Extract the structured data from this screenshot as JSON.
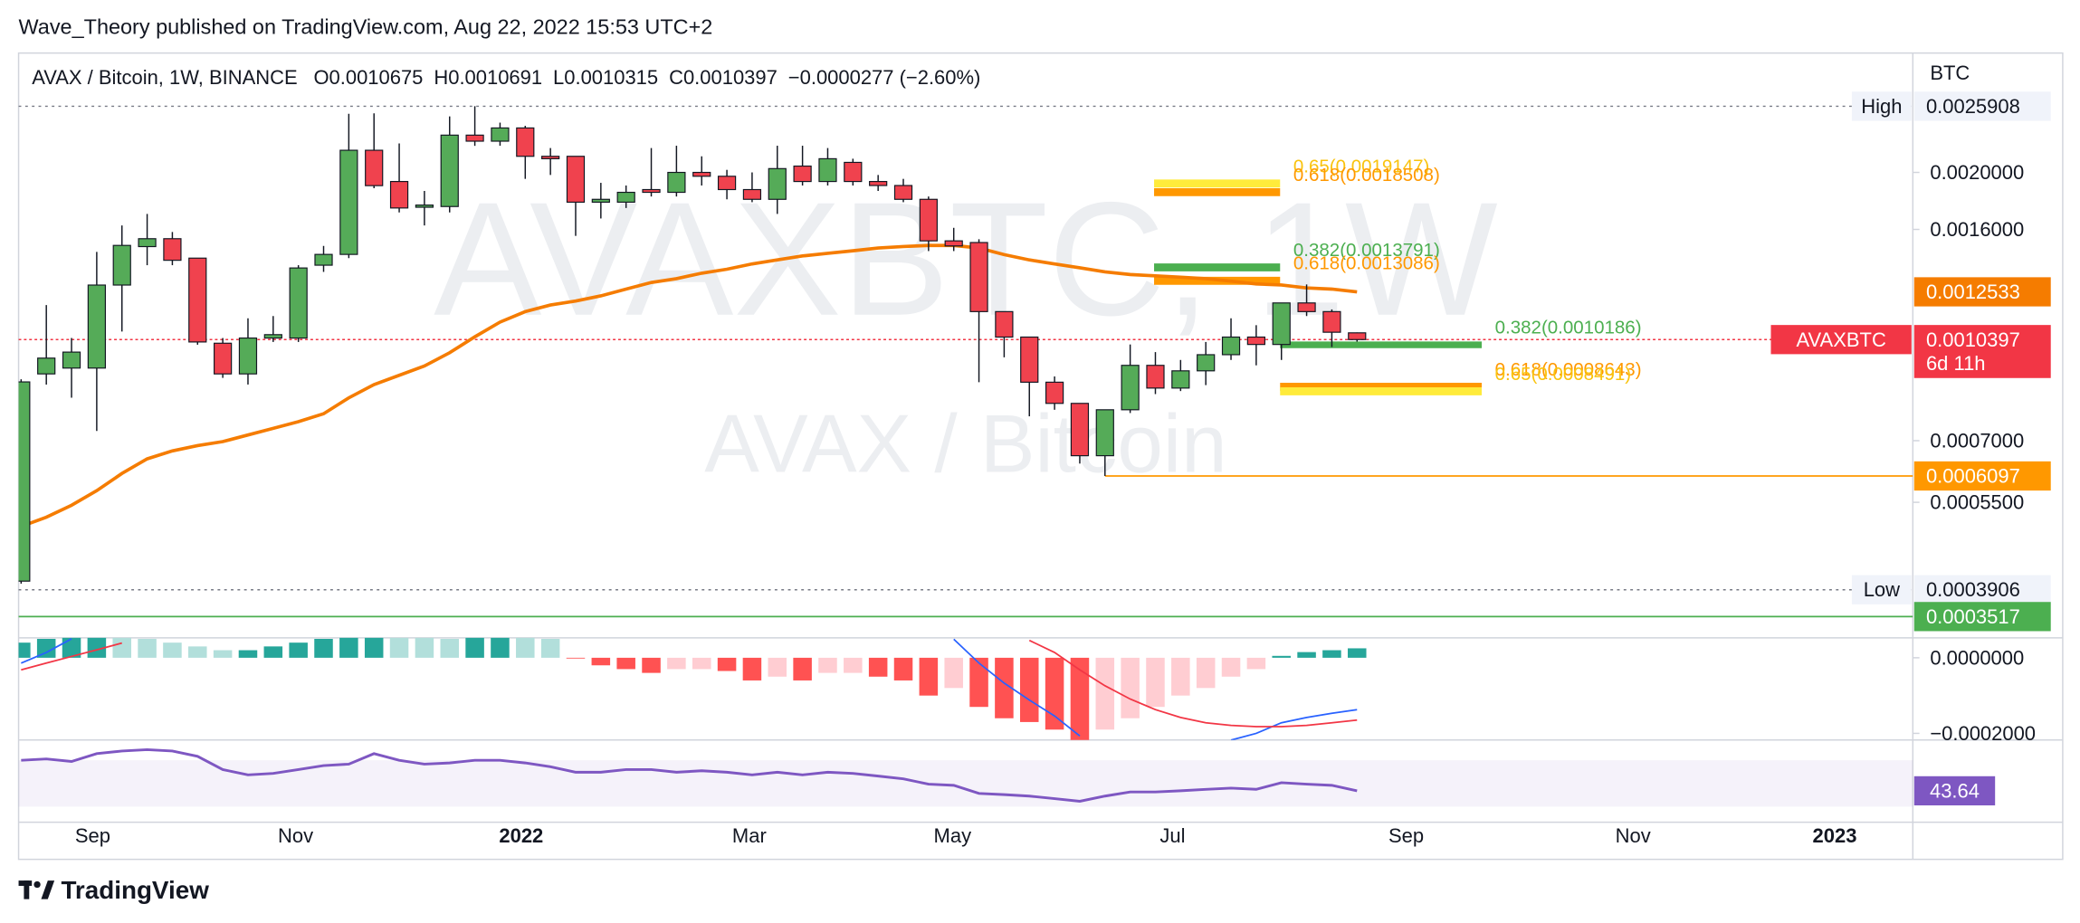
{
  "header": {
    "published": "Wave_Theory published on TradingView.com, Aug 22, 2022 15:53 UTC+2",
    "symbol": "AVAX / Bitcoin, 1W, BINANCE",
    "open": "O0.0010675",
    "high": "H0.0010691",
    "low": "L0.0010315",
    "close": "C0.0010397",
    "change": "−0.0000277 (−2.60%)"
  },
  "footer": {
    "brand": "TradingView"
  },
  "chart_data": {
    "type": "candlestick",
    "watermark": "AVAXBTC, 1W",
    "watermark_sub": "AVAX / Bitcoin",
    "unit": "BTC",
    "log_scale": true,
    "up_color": "#55ab58",
    "down_color": "#f0424e",
    "wick_color": "#131722",
    "open": [
      0.000404,
      0.000909,
      0.00093,
      0.00093,
      0.001287,
      0.001496,
      0.001543,
      0.00143,
      0.001025,
      0.000909,
      0.001046,
      0.001046,
      0.001391,
      0.001451,
      0.002181,
      0.00193,
      0.001745,
      0.00175,
      0.002314,
      0.00226,
      0.00238,
      0.00213,
      0.00213,
      0.00178,
      0.00178,
      0.00187,
      0.00185,
      0.002,
      0.00197,
      0.00187,
      0.0018,
      0.00205,
      0.00193,
      0.00208,
      0.00193,
      0.0019,
      0.0018,
      0.00153,
      0.00152,
      0.00116,
      0.00105,
      0.00088,
      0.00081,
      0.00066,
      0.00079,
      0.00094,
      0.00086,
      0.00092,
      0.00098,
      0.00105,
      0.00102,
      0.0012,
      0.00116,
      0.0010675
    ],
    "high": [
      0.00089,
      0.00119,
      0.001046,
      0.001465,
      0.001625,
      0.0017,
      0.001584,
      0.00143,
      0.001046,
      0.00113,
      0.00114,
      0.001391,
      0.0015,
      0.002516,
      0.00252,
      0.00224,
      0.00186,
      0.00249,
      0.0025908,
      0.00243,
      0.0024,
      0.0022,
      0.00213,
      0.00192,
      0.0019,
      0.0022,
      0.00222,
      0.00213,
      0.00202,
      0.002,
      0.00222,
      0.00222,
      0.0022,
      0.00211,
      0.00198,
      0.00195,
      0.00182,
      0.00161,
      0.00154,
      0.00116,
      0.00105,
      0.0009,
      0.00081,
      0.00079,
      0.00102,
      0.00099,
      0.00096,
      0.00103,
      0.00113,
      0.0011,
      0.0012,
      0.00129,
      0.00117,
      0.0010691
    ],
    "low": [
      0.0004,
      0.000872,
      0.000828,
      0.000727,
      0.001073,
      0.001391,
      0.001391,
      0.001019,
      0.000895,
      0.000872,
      0.00103,
      0.00103,
      0.001355,
      0.00143,
      0.00188,
      0.00171,
      0.001625,
      0.00171,
      0.002219,
      0.00222,
      0.00195,
      0.00198,
      0.00156,
      0.00167,
      0.00174,
      0.00182,
      0.00182,
      0.0019,
      0.0018,
      0.00178,
      0.0017,
      0.0019,
      0.0019,
      0.0019,
      0.00186,
      0.00178,
      0.00147,
      0.00147,
      0.00088,
      0.00097,
      0.00077,
      0.00079,
      0.00064,
      0.0006097,
      0.00078,
      0.00084,
      0.00085,
      0.00087,
      0.00096,
      0.00094,
      0.00096,
      0.00114,
      0.00101,
      0.0010315
    ],
    "close": [
      0.000881,
      0.000967,
      0.00099,
      0.001287,
      0.001503,
      0.001543,
      0.001418,
      0.00103,
      0.000909,
      0.001046,
      0.00106,
      0.001376,
      0.001451,
      0.002181,
      0.001899,
      0.00174,
      0.00176,
      0.002314,
      0.00226,
      0.00238,
      0.00213,
      0.00211,
      0.00178,
      0.0018,
      0.00185,
      0.00185,
      0.002,
      0.00197,
      0.00187,
      0.0018,
      0.00203,
      0.00193,
      0.00211,
      0.00193,
      0.0019,
      0.0018,
      0.00153,
      0.0015,
      0.00116,
      0.00105,
      0.00088,
      0.00081,
      0.00066,
      0.00079,
      0.00094,
      0.00086,
      0.00092,
      0.00098,
      0.00105,
      0.00102,
      0.0012,
      0.00116,
      0.00107,
      0.0010397
    ],
    "xlim": [
      -0.1,
      75.05
    ],
    "xticks": [
      {
        "value": 2.84,
        "label": "Sep"
      },
      {
        "value": 10.89,
        "label": "Nov"
      },
      {
        "value": 19.84,
        "label": "2022"
      },
      {
        "value": 28.89,
        "label": "Mar"
      },
      {
        "value": 36.95,
        "label": "May"
      },
      {
        "value": 45.68,
        "label": "Jul"
      },
      {
        "value": 54.95,
        "label": "Sep"
      },
      {
        "value": 63.95,
        "label": "Nov"
      },
      {
        "value": 71.95,
        "label": "2023"
      }
    ],
    "ylim": [
      0.00032524,
      0.0031906
    ],
    "yticks": [
      {
        "value": 0.002,
        "label": "0.0020000"
      },
      {
        "value": 0.0016,
        "label": "0.0016000"
      },
      {
        "value": 0.0007,
        "label": "0.0007000"
      },
      {
        "value": 0.00055,
        "label": "0.0005500"
      }
    ],
    "moving_average": {
      "color": "#f57c00",
      "values": [
        0.0005004,
        0.0005188,
        0.0005438,
        0.0005756,
        0.0006158,
        0.000652,
        0.0006726,
        0.0006868,
        0.0006974,
        0.0007158,
        0.0007346,
        0.000754,
        0.0007778,
        0.0008278,
        0.0008718,
        0.000904,
        0.0009376,
        0.0009874,
        0.001051,
        0.001113,
        0.00116,
        0.00119,
        0.001209,
        0.001234,
        0.001267,
        0.0013,
        0.00132,
        0.001348,
        0.001369,
        0.001398,
        0.00142,
        0.001442,
        0.001457,
        0.001472,
        0.001488,
        0.001496,
        0.001503,
        0.001503,
        0.001488,
        0.00145,
        0.00142,
        0.001398,
        0.001377,
        0.001355,
        0.001341,
        0.001334,
        0.001327,
        0.00132,
        0.001307,
        0.001293,
        0.001287,
        0.001273,
        0.001267,
        0.0012533
      ]
    },
    "price_lines": [
      {
        "value": 0.0025908,
        "tag": "High",
        "color": "#787b86"
      },
      {
        "value": 0.0003906,
        "tag": "Low",
        "color": "#787b86"
      },
      {
        "value": 0.0010397,
        "tag": "AVAXBTC",
        "countdown": "6d 11h",
        "color": "#f23645"
      },
      {
        "value": 0.0012533,
        "color": "#f57c00"
      },
      {
        "value": 0.0006097,
        "color": "#ff9800"
      },
      {
        "value": 0.0003517,
        "color": "#4caf50"
      }
    ],
    "fib_levels": [
      {
        "label": "0.65(0.0019147)",
        "value": 0.0019147,
        "color": "#ffeb3b",
        "text_color": "#f9c30e"
      },
      {
        "label": "0.618(0.0018508)",
        "value": 0.0018508,
        "color": "#ff9800",
        "text_color": "#ff9800"
      },
      {
        "label": "0.382(0.0013791)",
        "value": 0.0013791,
        "color": "#4caf50",
        "text_color": "#4caf50"
      },
      {
        "label": "0.618(0.0013086)",
        "value": 0.0013086,
        "color": "#ff9800",
        "text_color": "#ff9800"
      },
      {
        "label": "0.382(0.0010186)",
        "value": 0.0010186,
        "color": "#4caf50",
        "text_color": "#4caf50"
      },
      {
        "label": "0.618(0.0008643)",
        "value": 0.0008643,
        "color": "#ff9800",
        "text_color": "#ff9800"
      },
      {
        "label": "0.65(0.0008491)",
        "value": 0.0008491,
        "color": "#ffeb3b",
        "text_color": "#f9c30e"
      }
    ],
    "macd": {
      "ylim": [
        -0.0002175,
        5.26e-05
      ],
      "yticks": [
        {
          "value": 0,
          "label": "0.0000000"
        },
        {
          "value": -0.0002,
          "label": "−0.0002000"
        }
      ],
      "histogram_colors": [
        "#26a69a",
        "#b2dfdb",
        "#ff5252",
        "#ffcdd2"
      ],
      "histogram": [
        4e-05,
        5e-05,
        6e-05,
        7e-05,
        6e-05,
        5e-05,
        4e-05,
        3e-05,
        2e-05,
        2e-05,
        3e-05,
        4e-05,
        5e-05,
        7e-05,
        8e-05,
        7e-05,
        6e-05,
        5e-05,
        6e-05,
        7e-05,
        6e-05,
        5e-05,
        -2e-06,
        -2e-05,
        -3e-05,
        -4e-05,
        -3e-05,
        -3e-05,
        -3.5e-05,
        -6e-05,
        -5e-05,
        -6e-05,
        -4e-05,
        -4e-05,
        -5e-05,
        -6e-05,
        -0.0001,
        -8e-05,
        -0.00013,
        -0.00016,
        -0.00017,
        -0.00019,
        -0.00022,
        -0.00019,
        -0.00016,
        -0.00013,
        -0.0001,
        -8e-05,
        -5e-05,
        -3e-05,
        5e-06,
        1.5e-05,
        2e-05,
        2.5e-05
      ],
      "macd_line": {
        "color": "#2962ff",
        "values": [
          -1.4e-05,
          1.4e-05,
          5e-05,
          null,
          null,
          null,
          null,
          null,
          null,
          null,
          null,
          null,
          null,
          null,
          null,
          null,
          null,
          null,
          null,
          null,
          null,
          null,
          null,
          null,
          null,
          null,
          null,
          null,
          null,
          null,
          null,
          null,
          null,
          null,
          null,
          null,
          null,
          4.9e-05,
          -1.4e-05,
          -6.7e-05,
          -0.000112,
          -0.000154,
          -0.000207,
          null,
          null,
          null,
          null,
          null,
          -0.000218,
          -0.0002,
          -0.000172,
          -0.000158,
          -0.000147,
          -0.000137
        ]
      },
      "signal_line": {
        "color": "#f23645",
        "values": [
          -3.2e-05,
          -1.4e-05,
          3.5e-06,
          2.1e-05,
          3.9e-05,
          null,
          null,
          null,
          null,
          null,
          null,
          null,
          null,
          null,
          null,
          null,
          null,
          null,
          null,
          null,
          null,
          null,
          null,
          null,
          null,
          null,
          null,
          null,
          null,
          null,
          null,
          null,
          null,
          null,
          null,
          null,
          null,
          null,
          null,
          null,
          4.6e-05,
          1.4e-05,
          -3.2e-05,
          -7.4e-05,
          -0.000109,
          -0.000137,
          -0.000158,
          -0.000172,
          -0.000179,
          -0.000182,
          -0.000182,
          -0.000179,
          -0.000172,
          -0.000165
        ]
      }
    },
    "rsi": {
      "ylim": [
        20,
        84
      ],
      "band": [
        30,
        70
      ],
      "color": "#7e57c2",
      "values": [
        70.0,
        71.1,
        68.9,
        75.7,
        78.0,
        79.1,
        78.0,
        73.4,
        62.0,
        57.4,
        58.6,
        62.0,
        65.4,
        66.6,
        75.7,
        70.0,
        66.6,
        67.7,
        70.0,
        70.0,
        67.7,
        64.3,
        59.7,
        59.7,
        62.0,
        62.0,
        59.7,
        60.9,
        59.7,
        57.4,
        59.7,
        57.4,
        59.7,
        58.6,
        56.3,
        54.0,
        49.4,
        48.3,
        41.4,
        40.3,
        39.1,
        36.9,
        34.6,
        39.1,
        42.6,
        42.6,
        43.7,
        44.9,
        46.0,
        44.9,
        50.6,
        49.4,
        48.3,
        43.64
      ]
    }
  }
}
